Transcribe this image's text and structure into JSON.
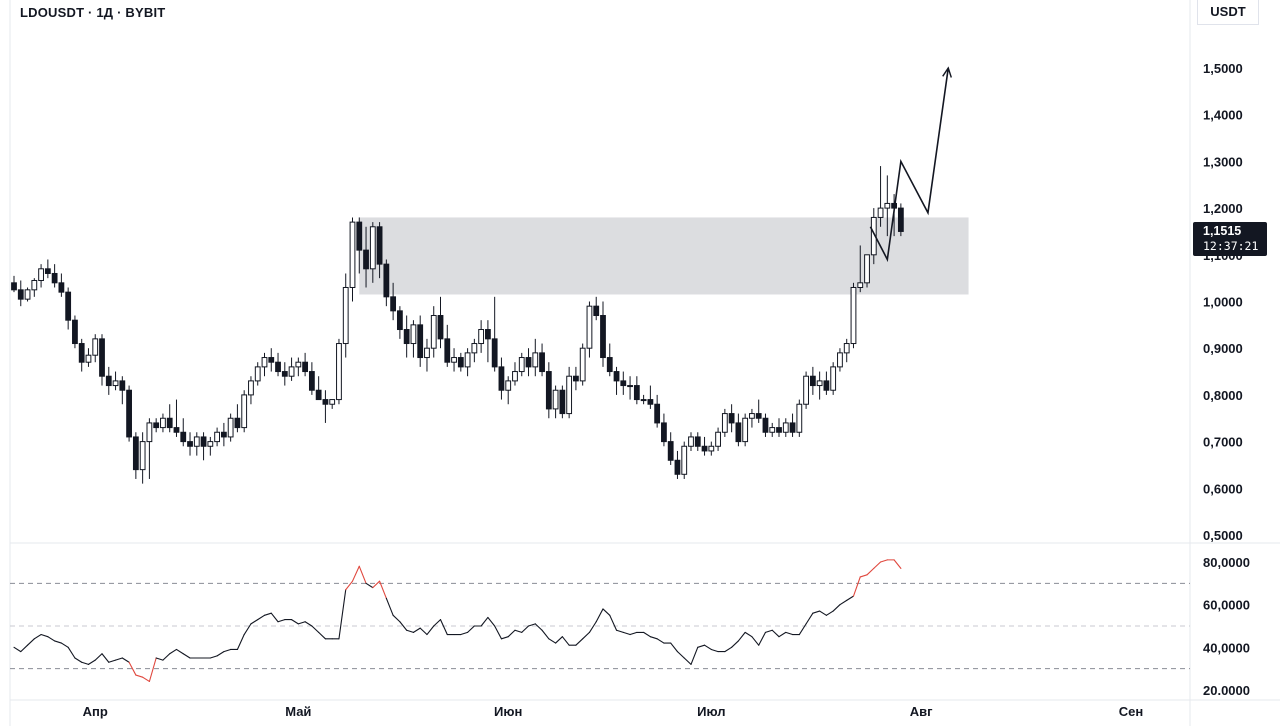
{
  "header": {
    "title": "LDOUSDT · 1Д · BYBIT",
    "unit": "USDT"
  },
  "price_tag": {
    "value": "1,1515",
    "countdown": "12:37:21"
  },
  "chart_data": [
    {
      "type": "candlestick",
      "title": "LDOUSDT · 1Д · BYBIT",
      "ylabel": "USDT",
      "ylim": [
        0.5,
        1.5
      ],
      "yticks": [
        {
          "v": 1.5,
          "label": "1,5000"
        },
        {
          "v": 1.4,
          "label": "1,4000"
        },
        {
          "v": 1.3,
          "label": "1,3000"
        },
        {
          "v": 1.2,
          "label": "1,2000"
        },
        {
          "v": 1.1,
          "label": "1,1000"
        },
        {
          "v": 1.0,
          "label": "1,0000"
        },
        {
          "v": 0.9,
          "label": "0,9000"
        },
        {
          "v": 0.8,
          "label": "0,8000"
        },
        {
          "v": 0.7,
          "label": "0,7000"
        },
        {
          "v": 0.6,
          "label": "0,6000"
        },
        {
          "v": 0.5,
          "label": "0,5000"
        }
      ],
      "xticks": [
        {
          "day": 12,
          "label": "Апр"
        },
        {
          "day": 42,
          "label": "Май"
        },
        {
          "day": 73,
          "label": "Июн"
        },
        {
          "day": 103,
          "label": "Июл"
        },
        {
          "day": 134,
          "label": "Авг"
        },
        {
          "day": 165,
          "label": "Сен"
        }
      ],
      "candles": [
        [
          1.04,
          1.055,
          1.02,
          1.025
        ],
        [
          1.025,
          1.045,
          0.99,
          1.005
        ],
        [
          1.005,
          1.03,
          1.0,
          1.025
        ],
        [
          1.025,
          1.05,
          1.01,
          1.045
        ],
        [
          1.045,
          1.08,
          1.03,
          1.07
        ],
        [
          1.07,
          1.09,
          1.05,
          1.06
        ],
        [
          1.06,
          1.08,
          1.03,
          1.04
        ],
        [
          1.04,
          1.06,
          1.01,
          1.02
        ],
        [
          1.02,
          1.03,
          0.94,
          0.96
        ],
        [
          0.96,
          0.97,
          0.9,
          0.91
        ],
        [
          0.91,
          0.92,
          0.85,
          0.87
        ],
        [
          0.87,
          0.9,
          0.86,
          0.885
        ],
        [
          0.885,
          0.93,
          0.87,
          0.92
        ],
        [
          0.92,
          0.93,
          0.82,
          0.84
        ],
        [
          0.84,
          0.86,
          0.8,
          0.82
        ],
        [
          0.82,
          0.85,
          0.81,
          0.83
        ],
        [
          0.83,
          0.84,
          0.78,
          0.81
        ],
        [
          0.81,
          0.82,
          0.7,
          0.71
        ],
        [
          0.71,
          0.72,
          0.62,
          0.64
        ],
        [
          0.64,
          0.72,
          0.61,
          0.7
        ],
        [
          0.7,
          0.75,
          0.62,
          0.74
        ],
        [
          0.74,
          0.75,
          0.72,
          0.73
        ],
        [
          0.73,
          0.76,
          0.72,
          0.75
        ],
        [
          0.75,
          0.78,
          0.72,
          0.73
        ],
        [
          0.73,
          0.79,
          0.71,
          0.72
        ],
        [
          0.72,
          0.75,
          0.69,
          0.7
        ],
        [
          0.7,
          0.72,
          0.67,
          0.69
        ],
        [
          0.69,
          0.72,
          0.67,
          0.71
        ],
        [
          0.71,
          0.72,
          0.66,
          0.69
        ],
        [
          0.69,
          0.71,
          0.67,
          0.7
        ],
        [
          0.7,
          0.73,
          0.69,
          0.72
        ],
        [
          0.72,
          0.74,
          0.69,
          0.71
        ],
        [
          0.71,
          0.76,
          0.7,
          0.75
        ],
        [
          0.75,
          0.78,
          0.72,
          0.73
        ],
        [
          0.73,
          0.81,
          0.72,
          0.8
        ],
        [
          0.8,
          0.84,
          0.78,
          0.83
        ],
        [
          0.83,
          0.87,
          0.82,
          0.86
        ],
        [
          0.86,
          0.89,
          0.84,
          0.88
        ],
        [
          0.88,
          0.9,
          0.85,
          0.87
        ],
        [
          0.87,
          0.89,
          0.84,
          0.85
        ],
        [
          0.85,
          0.87,
          0.82,
          0.84
        ],
        [
          0.84,
          0.88,
          0.83,
          0.86
        ],
        [
          0.86,
          0.88,
          0.84,
          0.87
        ],
        [
          0.87,
          0.89,
          0.84,
          0.85
        ],
        [
          0.85,
          0.87,
          0.8,
          0.81
        ],
        [
          0.81,
          0.84,
          0.79,
          0.79
        ],
        [
          0.79,
          0.81,
          0.74,
          0.78
        ],
        [
          0.78,
          0.79,
          0.77,
          0.79
        ],
        [
          0.79,
          0.92,
          0.78,
          0.91
        ],
        [
          0.91,
          1.06,
          0.88,
          1.03
        ],
        [
          1.03,
          1.18,
          1.0,
          1.17
        ],
        [
          1.17,
          1.18,
          1.06,
          1.11
        ],
        [
          1.11,
          1.16,
          1.03,
          1.07
        ],
        [
          1.07,
          1.17,
          1.04,
          1.16
        ],
        [
          1.16,
          1.17,
          1.05,
          1.08
        ],
        [
          1.08,
          1.09,
          0.99,
          1.01
        ],
        [
          1.01,
          1.04,
          0.96,
          0.98
        ],
        [
          0.98,
          0.99,
          0.92,
          0.94
        ],
        [
          0.94,
          0.97,
          0.88,
          0.91
        ],
        [
          0.91,
          0.96,
          0.88,
          0.95
        ],
        [
          0.95,
          0.97,
          0.86,
          0.88
        ],
        [
          0.88,
          0.92,
          0.85,
          0.9
        ],
        [
          0.9,
          0.99,
          0.88,
          0.97
        ],
        [
          0.97,
          1.01,
          0.9,
          0.92
        ],
        [
          0.92,
          0.95,
          0.86,
          0.87
        ],
        [
          0.87,
          0.9,
          0.85,
          0.88
        ],
        [
          0.88,
          0.89,
          0.85,
          0.86
        ],
        [
          0.86,
          0.9,
          0.84,
          0.89
        ],
        [
          0.89,
          0.92,
          0.87,
          0.91
        ],
        [
          0.91,
          0.96,
          0.89,
          0.94
        ],
        [
          0.94,
          0.96,
          0.87,
          0.92
        ],
        [
          0.92,
          1.01,
          0.85,
          0.86
        ],
        [
          0.86,
          0.88,
          0.79,
          0.81
        ],
        [
          0.81,
          0.84,
          0.78,
          0.83
        ],
        [
          0.83,
          0.87,
          0.82,
          0.85
        ],
        [
          0.85,
          0.89,
          0.84,
          0.88
        ],
        [
          0.88,
          0.9,
          0.84,
          0.86
        ],
        [
          0.86,
          0.92,
          0.84,
          0.89
        ],
        [
          0.89,
          0.91,
          0.84,
          0.85
        ],
        [
          0.85,
          0.87,
          0.75,
          0.77
        ],
        [
          0.77,
          0.82,
          0.75,
          0.81
        ],
        [
          0.81,
          0.82,
          0.75,
          0.76
        ],
        [
          0.76,
          0.86,
          0.75,
          0.84
        ],
        [
          0.84,
          0.86,
          0.81,
          0.83
        ],
        [
          0.83,
          0.91,
          0.82,
          0.9
        ],
        [
          0.9,
          1.0,
          0.88,
          0.99
        ],
        [
          0.99,
          1.01,
          0.96,
          0.97
        ],
        [
          0.97,
          1.0,
          0.86,
          0.88
        ],
        [
          0.88,
          0.91,
          0.84,
          0.85
        ],
        [
          0.85,
          0.86,
          0.8,
          0.83
        ],
        [
          0.83,
          0.85,
          0.8,
          0.82
        ],
        [
          0.82,
          0.84,
          0.79,
          0.82
        ],
        [
          0.82,
          0.84,
          0.78,
          0.79
        ],
        [
          0.79,
          0.8,
          0.78,
          0.79
        ],
        [
          0.79,
          0.82,
          0.77,
          0.78
        ],
        [
          0.78,
          0.8,
          0.73,
          0.74
        ],
        [
          0.74,
          0.76,
          0.69,
          0.7
        ],
        [
          0.7,
          0.72,
          0.65,
          0.66
        ],
        [
          0.66,
          0.68,
          0.62,
          0.63
        ],
        [
          0.63,
          0.7,
          0.62,
          0.69
        ],
        [
          0.69,
          0.72,
          0.68,
          0.71
        ],
        [
          0.71,
          0.72,
          0.68,
          0.69
        ],
        [
          0.69,
          0.71,
          0.67,
          0.68
        ],
        [
          0.68,
          0.7,
          0.67,
          0.69
        ],
        [
          0.69,
          0.73,
          0.68,
          0.72
        ],
        [
          0.72,
          0.77,
          0.71,
          0.76
        ],
        [
          0.76,
          0.78,
          0.72,
          0.74
        ],
        [
          0.74,
          0.76,
          0.69,
          0.7
        ],
        [
          0.7,
          0.76,
          0.69,
          0.75
        ],
        [
          0.75,
          0.77,
          0.73,
          0.76
        ],
        [
          0.76,
          0.79,
          0.74,
          0.75
        ],
        [
          0.75,
          0.76,
          0.71,
          0.72
        ],
        [
          0.72,
          0.74,
          0.71,
          0.73
        ],
        [
          0.73,
          0.75,
          0.71,
          0.72
        ],
        [
          0.72,
          0.75,
          0.71,
          0.74
        ],
        [
          0.74,
          0.76,
          0.71,
          0.72
        ],
        [
          0.72,
          0.79,
          0.71,
          0.78
        ],
        [
          0.78,
          0.85,
          0.77,
          0.84
        ],
        [
          0.84,
          0.86,
          0.8,
          0.82
        ],
        [
          0.82,
          0.85,
          0.79,
          0.83
        ],
        [
          0.83,
          0.85,
          0.8,
          0.81
        ],
        [
          0.81,
          0.87,
          0.8,
          0.86
        ],
        [
          0.86,
          0.9,
          0.85,
          0.89
        ],
        [
          0.89,
          0.92,
          0.87,
          0.91
        ],
        [
          0.91,
          1.04,
          0.9,
          1.03
        ],
        [
          1.03,
          1.12,
          1.02,
          1.04
        ],
        [
          1.04,
          1.1,
          1.03,
          1.1
        ],
        [
          1.1,
          1.2,
          1.08,
          1.18
        ],
        [
          1.18,
          1.29,
          1.16,
          1.2
        ],
        [
          1.2,
          1.27,
          1.14,
          1.21
        ],
        [
          1.21,
          1.23,
          1.14,
          1.2
        ],
        [
          1.2,
          1.21,
          1.14,
          1.15
        ]
      ],
      "zone": {
        "x_start_day": 51,
        "x_end_day": 141,
        "y_low": 1.015,
        "y_high": 1.18
      },
      "projection": [
        {
          "day": 126.5,
          "v": 1.16
        },
        {
          "day": 129,
          "v": 1.09
        },
        {
          "day": 131,
          "v": 1.3
        },
        {
          "day": 135,
          "v": 1.19
        },
        {
          "day": 138,
          "v": 1.5
        }
      ]
    },
    {
      "type": "line",
      "ylim": [
        20,
        80
      ],
      "yticks": [
        {
          "v": 80,
          "label": "80,0000"
        },
        {
          "v": 60,
          "label": "60,0000"
        },
        {
          "v": 40,
          "label": "40,0000"
        },
        {
          "v": 20,
          "label": "20.0000"
        }
      ],
      "bands": [
        70,
        50,
        30
      ],
      "overbought": 70,
      "oversold": 30,
      "colors": {
        "normal": "#131722",
        "extreme": "#e0483e"
      },
      "values": [
        40,
        38,
        41,
        44,
        46,
        45,
        43,
        42,
        40,
        35,
        33,
        32,
        34,
        37,
        33,
        34,
        35,
        33,
        27,
        26,
        24,
        35,
        34,
        37,
        39,
        37,
        35,
        35,
        35,
        35,
        36,
        38,
        39,
        39,
        46,
        51,
        53,
        55,
        56,
        52,
        53,
        53,
        51,
        52,
        50,
        47,
        44,
        44,
        44,
        67,
        71,
        78,
        70,
        68,
        71,
        63,
        55,
        52,
        48,
        47,
        49,
        46,
        50,
        53,
        46,
        46,
        46,
        47,
        50,
        50,
        54,
        50,
        44,
        45,
        48,
        47,
        50,
        51,
        48,
        44,
        42,
        45,
        41,
        41,
        44,
        47,
        52,
        58,
        55,
        48,
        47,
        46,
        47,
        47,
        45,
        44,
        42,
        42,
        38,
        35,
        32,
        40,
        41,
        39,
        38,
        38,
        40,
        43,
        47,
        45,
        41,
        47,
        48,
        45,
        47,
        46,
        46,
        51,
        56,
        57,
        55,
        57,
        60,
        62,
        64,
        73,
        74,
        77,
        80,
        81,
        81,
        77
      ]
    }
  ]
}
